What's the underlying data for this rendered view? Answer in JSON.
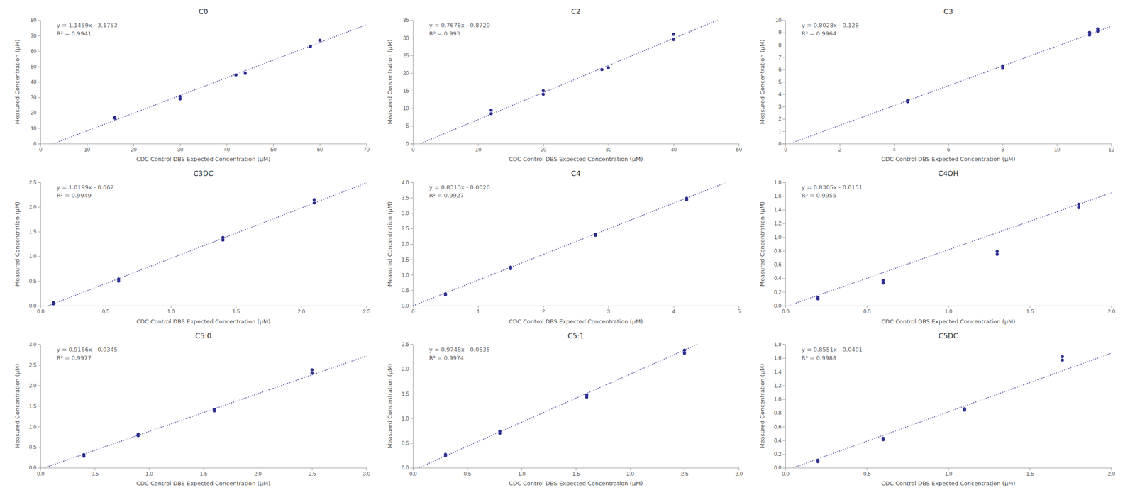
{
  "chart_data": [
    {
      "type": "scatter",
      "title": "C0",
      "x_label": "CDC Control DBS Expected Concentration (μM)",
      "y_label": "Measured Concentration (μM)",
      "x": [
        16.0,
        16.0,
        30.0,
        30.0,
        42.0,
        44.0,
        58.0,
        60.0
      ],
      "y": [
        16.5,
        17.0,
        29.0,
        30.5,
        44.5,
        45.5,
        63.0,
        67.0
      ],
      "color": "#2e308f",
      "marker": "circle",
      "grid": false,
      "trendline": {
        "slope": 1.1459,
        "intercept": -3.1753,
        "color": "#2e308f",
        "line_style": "dotted"
      },
      "annotations": [
        "y = 1.1459x - 3.1753",
        "R² = 0.9941"
      ],
      "xlim": [
        0,
        70
      ],
      "ylim": [
        0,
        80
      ],
      "xticks": [
        0,
        10,
        20,
        30,
        40,
        50,
        60,
        70
      ],
      "yticks": [
        0,
        10,
        20,
        30,
        40,
        50,
        60,
        70,
        80
      ]
    },
    {
      "type": "scatter",
      "title": "C2",
      "x_label": "CDC Control DBS Expected Concentration (μM)",
      "y_label": "Measured Concentration (μM)",
      "x": [
        12.0,
        12.0,
        20.0,
        20.0,
        29.0,
        30.0,
        40.0,
        40.0
      ],
      "y": [
        8.5,
        9.5,
        14.0,
        15.0,
        21.0,
        21.5,
        29.5,
        31.0
      ],
      "color": "#2e308f",
      "marker": "circle",
      "grid": false,
      "trendline": {
        "slope": 0.7678,
        "intercept": -0.8729,
        "color": "#2e308f",
        "line_style": "dotted"
      },
      "annotations": [
        "y = 0.7678x - 0.8729",
        "R² = 0.993"
      ],
      "xlim": [
        0,
        50
      ],
      "ylim": [
        0,
        35
      ],
      "xticks": [
        0,
        10,
        20,
        30,
        40,
        50
      ],
      "yticks": [
        0,
        5,
        10,
        15,
        20,
        25,
        30,
        35
      ]
    },
    {
      "type": "scatter",
      "title": "C3",
      "x_label": "CDC Control DBS Expected Concentration (μM)",
      "y_label": "Measured Concentration (μM)",
      "x": [
        4.5,
        4.5,
        8.0,
        8.0,
        11.2,
        11.2,
        11.5,
        11.5
      ],
      "y": [
        3.4,
        3.5,
        6.1,
        6.3,
        8.8,
        9.0,
        9.1,
        9.3
      ],
      "color": "#2e308f",
      "marker": "circle",
      "grid": false,
      "trendline": {
        "slope": 0.8028,
        "intercept": -0.128,
        "color": "#2e308f",
        "line_style": "dotted"
      },
      "annotations": [
        "y = 0.8028x - 0.128",
        "R² = 0.9964"
      ],
      "xlim": [
        0,
        12
      ],
      "ylim": [
        0,
        10
      ],
      "xticks": [
        0,
        2,
        4,
        6,
        8,
        10,
        12
      ],
      "yticks": [
        0,
        1,
        2,
        3,
        4,
        5,
        6,
        7,
        8,
        9,
        10
      ]
    },
    {
      "type": "scatter",
      "title": "C3DC",
      "x_label": "CDC Control DBS Expected Concentration (μM)",
      "y_label": "Measured Concentration (μM)",
      "x": [
        0.1,
        0.1,
        0.6,
        0.6,
        1.4,
        1.4,
        2.1,
        2.1
      ],
      "y": [
        0.04,
        0.06,
        0.5,
        0.54,
        1.33,
        1.38,
        2.08,
        2.15
      ],
      "color": "#2e308f",
      "marker": "circle",
      "grid": false,
      "trendline": {
        "slope": 1.0199,
        "intercept": -0.062,
        "color": "#2e308f",
        "line_style": "dotted"
      },
      "annotations": [
        "y = 1.0199x - 0.062",
        "R² = 0.9949"
      ],
      "xlim": [
        0,
        2.5
      ],
      "ylim": [
        0,
        2.5
      ],
      "xticks": [
        {
          "value": 0,
          "label": "0.0"
        },
        0.5,
        {
          "value": 1.0,
          "label": "1.0"
        },
        1.5,
        {
          "value": 2.0,
          "label": "2.0"
        },
        2.5
      ],
      "yticks": [
        {
          "value": 0,
          "label": "0.0"
        },
        0.5,
        {
          "value": 1.0,
          "label": "1.0"
        },
        1.5,
        {
          "value": 2.0,
          "label": "2.0"
        },
        2.5
      ]
    },
    {
      "type": "scatter",
      "title": "C4",
      "x_label": "CDC Control DBS Expected Concentration (μM)",
      "y_label": "Measured Concentration (μM)",
      "x": [
        0.5,
        0.5,
        1.5,
        1.5,
        2.8,
        2.8,
        4.2,
        4.2
      ],
      "y": [
        0.35,
        0.38,
        1.2,
        1.25,
        2.28,
        2.32,
        3.43,
        3.48
      ],
      "color": "#2e308f",
      "marker": "circle",
      "grid": false,
      "trendline": {
        "slope": 0.8313,
        "intercept": -0.002,
        "color": "#2e308f",
        "line_style": "dotted"
      },
      "annotations": [
        "y = 0.8313x - 0.0020",
        "R² = 0.9927"
      ],
      "xlim": [
        0,
        5
      ],
      "ylim": [
        0,
        4
      ],
      "xticks": [
        0,
        1,
        2,
        3,
        4,
        5
      ],
      "yticks": [
        {
          "value": 0,
          "label": "0.0"
        },
        0.5,
        {
          "value": 1.0,
          "label": "1.0"
        },
        1.5,
        {
          "value": 2.0,
          "label": "2.0"
        },
        2.5,
        {
          "value": 3.0,
          "label": "3.0"
        },
        3.5,
        {
          "value": 4.0,
          "label": "4.0"
        }
      ]
    },
    {
      "type": "scatter",
      "title": "C4OH",
      "x_label": "CDC Control DBS Expected Concentration (μM)",
      "y_label": "Measured Concentration (μM)",
      "x": [
        0.2,
        0.2,
        0.6,
        0.6,
        1.3,
        1.3,
        1.8,
        1.8
      ],
      "y": [
        0.1,
        0.12,
        0.33,
        0.37,
        0.75,
        0.79,
        1.43,
        1.48
      ],
      "color": "#2e308f",
      "marker": "circle",
      "grid": false,
      "trendline": {
        "slope": 0.8305,
        "intercept": -0.0151,
        "color": "#2e308f",
        "line_style": "dotted"
      },
      "annotations": [
        "y = 0.8305x - 0.0151",
        "R² = 0.9955"
      ],
      "xlim": [
        0,
        2
      ],
      "ylim": [
        0,
        1.8
      ],
      "xticks": [
        {
          "value": 0,
          "label": "0.0"
        },
        0.5,
        {
          "value": 1.0,
          "label": "1.0"
        },
        1.5,
        {
          "value": 2.0,
          "label": "2.0"
        }
      ],
      "yticks": [
        {
          "value": 0,
          "label": "0.0"
        },
        0.2,
        0.4,
        0.6,
        0.8,
        {
          "value": 1.0,
          "label": "1.0"
        },
        1.2,
        1.4,
        1.6,
        1.8
      ]
    },
    {
      "type": "scatter",
      "title": "C5:0",
      "x_label": "CDC Control DBS Expected Concentration (μM)",
      "y_label": "Measured Concentration (μM)",
      "x": [
        0.4,
        0.4,
        0.9,
        0.9,
        1.6,
        1.6,
        2.5,
        2.5
      ],
      "y": [
        0.28,
        0.32,
        0.78,
        0.82,
        1.38,
        1.42,
        2.3,
        2.38
      ],
      "color": "#2e308f",
      "marker": "circle",
      "grid": false,
      "trendline": {
        "slope": 0.9166,
        "intercept": -0.0345,
        "color": "#2e308f",
        "line_style": "dotted"
      },
      "annotations": [
        "y = 0.9166x - 0.0345",
        "R² = 0.9977"
      ],
      "xlim": [
        0,
        3
      ],
      "ylim": [
        0,
        3
      ],
      "xticks": [
        {
          "value": 0,
          "label": "0.0"
        },
        0.5,
        {
          "value": 1.0,
          "label": "1.0"
        },
        1.5,
        {
          "value": 2.0,
          "label": "2.0"
        },
        2.5,
        {
          "value": 3.0,
          "label": "3.0"
        }
      ],
      "yticks": [
        {
          "value": 0,
          "label": "0.0"
        },
        0.5,
        {
          "value": 1.0,
          "label": "1.0"
        },
        1.5,
        {
          "value": 2.0,
          "label": "2.0"
        },
        2.5,
        {
          "value": 3.0,
          "label": "3.0"
        }
      ]
    },
    {
      "type": "scatter",
      "title": "C5:1",
      "x_label": "CDC Control DBS Expected Concentration (μM)",
      "y_label": "Measured Concentration (μM)",
      "x": [
        0.3,
        0.3,
        0.8,
        0.8,
        1.6,
        1.6,
        2.5,
        2.5
      ],
      "y": [
        0.24,
        0.27,
        0.7,
        0.74,
        1.43,
        1.47,
        2.32,
        2.38
      ],
      "color": "#2e308f",
      "marker": "circle",
      "grid": false,
      "trendline": {
        "slope": 0.9748,
        "intercept": -0.0535,
        "color": "#2e308f",
        "line_style": "dotted"
      },
      "annotations": [
        "y = 0.9748x - 0.0535",
        "R² = 0.9974"
      ],
      "xlim": [
        0,
        3
      ],
      "ylim": [
        0,
        2.5
      ],
      "xticks": [
        {
          "value": 0,
          "label": "0.0"
        },
        0.5,
        {
          "value": 1.0,
          "label": "1.0"
        },
        1.5,
        {
          "value": 2.0,
          "label": "2.0"
        },
        2.5,
        {
          "value": 3.0,
          "label": "3.0"
        }
      ],
      "yticks": [
        {
          "value": 0,
          "label": "0.0"
        },
        0.5,
        {
          "value": 1.0,
          "label": "1.0"
        },
        1.5,
        {
          "value": 2.0,
          "label": "2.0"
        },
        2.5
      ]
    },
    {
      "type": "scatter",
      "title": "C5DC",
      "x_label": "CDC Control DBS Expected Concentration (μM)",
      "y_label": "Measured Concentration (μM)",
      "x": [
        0.2,
        0.2,
        0.6,
        0.6,
        1.1,
        1.1,
        1.7,
        1.7
      ],
      "y": [
        0.09,
        0.11,
        0.41,
        0.43,
        0.84,
        0.86,
        1.57,
        1.62
      ],
      "color": "#2e308f",
      "marker": "circle",
      "grid": false,
      "trendline": {
        "slope": 0.8551,
        "intercept": -0.0401,
        "color": "#2e308f",
        "line_style": "dotted"
      },
      "annotations": [
        "y = 0.8551x - 0.0401",
        "R² = 0.9988"
      ],
      "xlim": [
        0,
        2
      ],
      "ylim": [
        0,
        1.8
      ],
      "xticks": [
        {
          "value": 0,
          "label": "0.0"
        },
        0.5,
        {
          "value": 1.0,
          "label": "1.0"
        },
        1.5,
        {
          "value": 2.0,
          "label": "2.0"
        }
      ],
      "yticks": [
        {
          "value": 0,
          "label": "0.0"
        },
        0.2,
        0.4,
        0.6,
        0.8,
        {
          "value": 1.0,
          "label": "1.0"
        },
        1.2,
        1.4,
        1.6,
        1.8
      ]
    }
  ]
}
